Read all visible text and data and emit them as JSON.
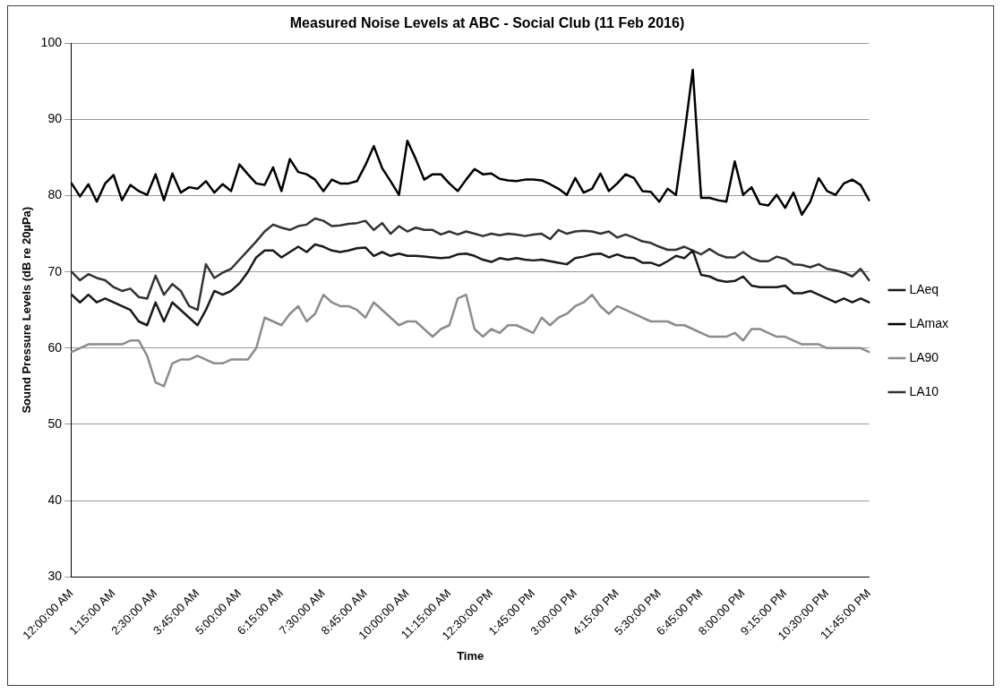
{
  "chart_data": {
    "type": "line",
    "title": "Measured Noise Levels at ABC - Social Club (11 Feb 2016)",
    "xlabel": "Time",
    "ylabel": "Sound Pressure Levels (dB re 20µPa)",
    "categories": [
      "12:00:00 AM",
      null,
      null,
      null,
      null,
      "1:15:00 AM",
      null,
      null,
      null,
      null,
      "2:30:00 AM",
      null,
      null,
      null,
      null,
      "3:45:00 AM",
      null,
      null,
      null,
      null,
      "5:00:00 AM",
      null,
      null,
      null,
      null,
      "6:15:00 AM",
      null,
      null,
      null,
      null,
      "7:30:00 AM",
      null,
      null,
      null,
      null,
      "8:45:00 AM",
      null,
      null,
      null,
      null,
      "10:00:00 AM",
      null,
      null,
      null,
      null,
      "11:15:00 AM",
      null,
      null,
      null,
      null,
      "12:30:00 PM",
      null,
      null,
      null,
      null,
      "1:45:00 PM",
      null,
      null,
      null,
      null,
      "3:00:00 PM",
      null,
      null,
      null,
      null,
      "4:15:00 PM",
      null,
      null,
      null,
      null,
      "5:30:00 PM",
      null,
      null,
      null,
      null,
      "6:45:00 PM",
      null,
      null,
      null,
      null,
      "8:00:00 PM",
      null,
      null,
      null,
      null,
      "9:15:00 PM",
      null,
      null,
      null,
      null,
      "10:30:00 PM",
      null,
      null,
      null,
      null,
      "11:45:00 PM"
    ],
    "series": [
      {
        "name": "LAeq",
        "color": "#1a1a1a",
        "values": [
          67,
          66,
          67,
          66,
          66.5,
          66,
          65.5,
          65,
          63.5,
          63,
          66,
          63.5,
          66,
          65,
          64,
          63,
          65,
          67.5,
          67,
          67.5,
          68.5,
          70,
          71.9,
          72.8,
          72.8,
          71.9,
          72.6,
          73.3,
          72.6,
          73.6,
          73.3,
          72.8,
          72.6,
          72.8,
          73.1,
          73.2,
          72.1,
          72.6,
          72.1,
          72.4,
          72.1,
          72.1,
          72,
          71.9,
          71.8,
          71.9,
          72.3,
          72.4,
          72.1,
          71.6,
          71.3,
          71.8,
          71.6,
          71.8,
          71.6,
          71.5,
          71.6,
          71.4,
          71.2,
          71,
          71.8,
          72,
          72.3,
          72.4,
          71.9,
          72.3,
          71.9,
          71.8,
          71.2,
          71.2,
          70.8,
          71.4,
          72.1,
          71.8,
          72.8,
          69.6,
          69.4,
          68.9,
          68.7,
          68.8,
          69.4,
          68.2,
          68,
          68,
          68,
          68.2,
          67.2,
          67.2,
          67.5,
          67,
          66.5,
          66,
          66.5,
          66,
          66.5,
          66
        ]
      },
      {
        "name": "LAmax",
        "color": "#000000",
        "values": [
          81.6,
          79.9,
          81.5,
          79.2,
          81.6,
          82.7,
          79.4,
          81.4,
          80.6,
          80.1,
          82.8,
          79.4,
          82.9,
          80.4,
          81.1,
          80.9,
          81.9,
          80.4,
          81.5,
          80.6,
          84.1,
          82.8,
          81.6,
          81.4,
          83.7,
          80.6,
          84.8,
          83.1,
          82.8,
          82.1,
          80.6,
          82.1,
          81.6,
          81.6,
          81.9,
          84,
          86.5,
          83.6,
          81.9,
          80.1,
          87.2,
          84.8,
          82.1,
          82.8,
          82.8,
          81.6,
          80.6,
          82.1,
          83.5,
          82.8,
          82.9,
          82.2,
          82,
          81.9,
          82.1,
          82.1,
          82,
          81.5,
          80.9,
          80.1,
          82.3,
          80.4,
          80.9,
          82.9,
          80.6,
          81.6,
          82.8,
          82.3,
          80.6,
          80.5,
          79.2,
          80.9,
          80.1,
          88,
          96.5,
          79.7,
          79.7,
          79.4,
          79.2,
          84.5,
          80.1,
          81.1,
          78.9,
          78.7,
          80.1,
          78.4,
          80.4,
          77.5,
          79.2,
          82.3,
          80.6,
          80.1,
          81.6,
          82.1,
          81.4,
          79.4
        ]
      },
      {
        "name": "LA90",
        "color": "#8c8c8c",
        "values": [
          59.5,
          60,
          60.5,
          60.5,
          60.5,
          60.5,
          60.5,
          61,
          61,
          59,
          55.5,
          55,
          58,
          58.5,
          58.5,
          59,
          58.5,
          58,
          58,
          58.5,
          58.5,
          58.5,
          60,
          64,
          63.5,
          63,
          64.5,
          65.5,
          63.5,
          64.5,
          67,
          66,
          65.5,
          65.5,
          65,
          64,
          66,
          65,
          64,
          63,
          63.5,
          63.5,
          62.5,
          61.5,
          62.5,
          63,
          66.5,
          67,
          62.5,
          61.5,
          62.5,
          62,
          63,
          63,
          62.5,
          62,
          64,
          63,
          64,
          64.5,
          65.5,
          66,
          67,
          65.5,
          64.5,
          65.5,
          65,
          64.5,
          64,
          63.5,
          63.5,
          63.5,
          63,
          63,
          62.5,
          62,
          61.5,
          61.5,
          61.5,
          62,
          61,
          62.5,
          62.5,
          62,
          61.5,
          61.5,
          61,
          60.5,
          60.5,
          60.5,
          60,
          60,
          60,
          60,
          60,
          59.5
        ]
      },
      {
        "name": "LA10",
        "color": "#333333",
        "values": [
          70,
          68.9,
          69.7,
          69.2,
          68.9,
          68,
          67.5,
          67.8,
          66.7,
          66.5,
          69.5,
          67,
          68.4,
          67.5,
          65.5,
          65,
          71,
          69.2,
          69.9,
          70.4,
          71.6,
          72.8,
          74,
          75.3,
          76.2,
          75.8,
          75.5,
          76,
          76.2,
          77,
          76.7,
          76,
          76.1,
          76.3,
          76.4,
          76.7,
          75.5,
          76.4,
          75,
          76,
          75.3,
          75.8,
          75.5,
          75.5,
          74.9,
          75.3,
          74.9,
          75.3,
          75,
          74.7,
          75,
          74.8,
          75,
          74.9,
          74.7,
          74.9,
          75,
          74.3,
          75.5,
          75,
          75.3,
          75.4,
          75.3,
          75,
          75.3,
          74.5,
          74.9,
          74.5,
          74,
          73.8,
          73.3,
          72.9,
          72.9,
          73.3,
          72.8,
          72.3,
          73,
          72.3,
          71.9,
          71.9,
          72.6,
          71.8,
          71.4,
          71.4,
          72,
          71.7,
          71,
          70.9,
          70.6,
          71,
          70.4,
          70.2,
          69.9,
          69.4,
          70.4,
          68.9
        ]
      }
    ],
    "ylim": [
      30,
      100
    ],
    "yticks": [
      30,
      40,
      50,
      60,
      70,
      80,
      90,
      100
    ],
    "grid": "y",
    "legend": "right",
    "marker": "none",
    "line_style": "solid"
  }
}
